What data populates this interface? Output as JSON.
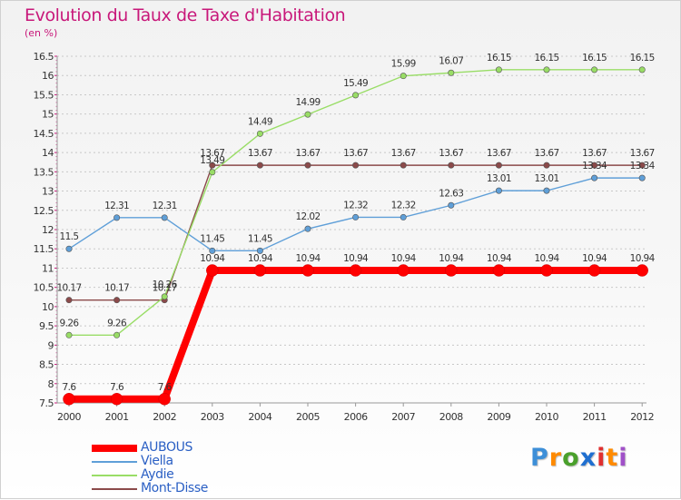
{
  "chart_data": {
    "type": "line",
    "title": "Evolution du Taux de Taxe d'Habitation",
    "ylabel": "(en %)",
    "x": [
      "2000",
      "2001",
      "2002",
      "2003",
      "2004",
      "2005",
      "2006",
      "2007",
      "2008",
      "2009",
      "2010",
      "2011",
      "2012"
    ],
    "ylim": [
      7.5,
      16.5
    ],
    "yticks": [
      "7.5",
      "8",
      "8.5",
      "9",
      "9.5",
      "10",
      "10.5",
      "11",
      "11.5",
      "12",
      "12.5",
      "13",
      "13.5",
      "14",
      "14.5",
      "15",
      "15.5",
      "16",
      "16.5"
    ],
    "grid": "horizontal dashed",
    "legend_position": "bottom-left",
    "series": [
      {
        "name": "AUBOUS",
        "color": "#ff0000",
        "values": [
          7.6,
          7.6,
          7.6,
          10.94,
          10.94,
          10.94,
          10.94,
          10.94,
          10.94,
          10.94,
          10.94,
          10.94,
          10.94
        ],
        "labels": [
          "7.6",
          "7.6",
          "7.6",
          "10.94",
          "10.94",
          "10.94",
          "10.94",
          "10.94",
          "10.94",
          "10.94",
          "10.94",
          "10.94",
          "10.94"
        ]
      },
      {
        "name": "Viella",
        "color": "#5f9fd8",
        "values": [
          11.5,
          12.31,
          12.31,
          11.45,
          11.45,
          12.02,
          12.32,
          12.32,
          12.63,
          13.01,
          13.01,
          13.34,
          13.34
        ],
        "labels": [
          "11.5",
          "12.31",
          "12.31",
          "11.45",
          "11.45",
          "12.02",
          "12.32",
          "12.32",
          "12.63",
          "13.01",
          "13.01",
          "13.34",
          "13.34"
        ]
      },
      {
        "name": "Aydie",
        "color": "#99dd66",
        "values": [
          9.26,
          9.26,
          10.26,
          13.49,
          14.49,
          14.99,
          15.49,
          15.99,
          16.07,
          16.15,
          16.15,
          16.15,
          16.15
        ],
        "labels": [
          "9.26",
          "9.26",
          "10.26",
          "13.49",
          "14.49",
          "14.99",
          "15.49",
          "15.99",
          "16.07",
          "16.15",
          "16.15",
          "16.15",
          "16.15"
        ]
      },
      {
        "name": "Mont-Disse",
        "color": "#8b4a4a",
        "values": [
          10.17,
          10.17,
          10.17,
          13.67,
          13.67,
          13.67,
          13.67,
          13.67,
          13.67,
          13.67,
          13.67,
          13.67,
          13.67
        ],
        "labels": [
          "10.17",
          "10.17",
          "10.17",
          "13.67",
          "13.67",
          "13.67",
          "13.67",
          "13.67",
          "13.67",
          "13.67",
          "13.67",
          "13.67",
          "13.67"
        ]
      }
    ]
  },
  "logo": {
    "text": "Proxiti",
    "letter_colors": [
      "#3d8fd8",
      "#ff8a00",
      "#4aa02c",
      "#1f6fd0",
      "#e03030",
      "#ff8a00",
      "#a050c8"
    ]
  }
}
